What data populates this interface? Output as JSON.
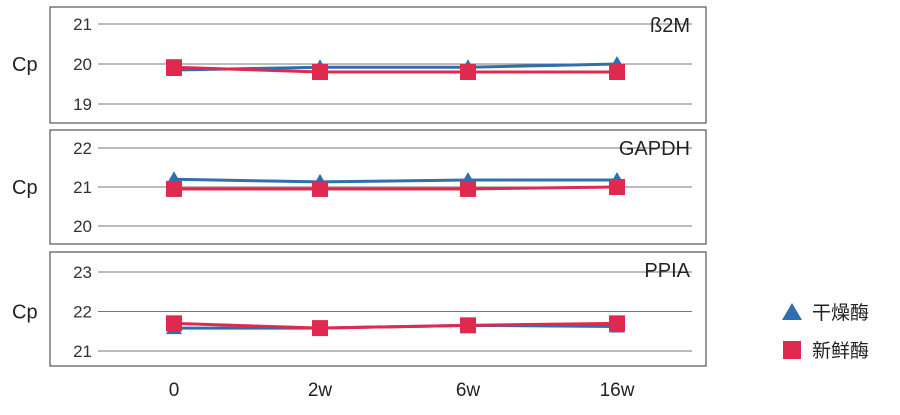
{
  "colors": {
    "dry": "#2f6fae",
    "fresh": "#e0294f",
    "frame": "#555555",
    "grid": "#777777"
  },
  "legend": {
    "placement": "right",
    "entries": [
      {
        "label": "干燥酶",
        "marker": "triangle"
      },
      {
        "label": "新鲜酶",
        "marker": "square"
      }
    ]
  },
  "chart_data": {
    "type": "line",
    "x": [
      "0",
      "2w",
      "6w",
      "16w"
    ],
    "panels": [
      {
        "title": "ß2M",
        "ylabel": "Cp",
        "ylim": [
          19,
          21
        ],
        "yticks": [
          "19",
          "20",
          "21"
        ],
        "series": [
          {
            "name": "干燥酶",
            "values": [
              19.85,
              19.92,
              19.92,
              20.0
            ]
          },
          {
            "name": "新鲜酶",
            "values": [
              19.92,
              19.8,
              19.8,
              19.8
            ]
          }
        ]
      },
      {
        "title": "GAPDH",
        "ylabel": "Cp",
        "ylim": [
          20,
          22
        ],
        "yticks": [
          "20",
          "21",
          "22"
        ],
        "series": [
          {
            "name": "干燥酶",
            "values": [
              21.2,
              21.13,
              21.18,
              21.18
            ]
          },
          {
            "name": "新鲜酶",
            "values": [
              20.95,
              20.95,
              20.95,
              21.0
            ]
          }
        ]
      },
      {
        "title": "PPIA",
        "ylabel": "Cp",
        "ylim": [
          21,
          23
        ],
        "yticks": [
          "21",
          "22",
          "23"
        ],
        "series": [
          {
            "name": "干燥酶",
            "values": [
              21.58,
              21.58,
              21.65,
              21.62
            ]
          },
          {
            "name": "新鲜酶",
            "values": [
              21.7,
              21.58,
              21.65,
              21.7
            ]
          }
        ]
      }
    ]
  }
}
